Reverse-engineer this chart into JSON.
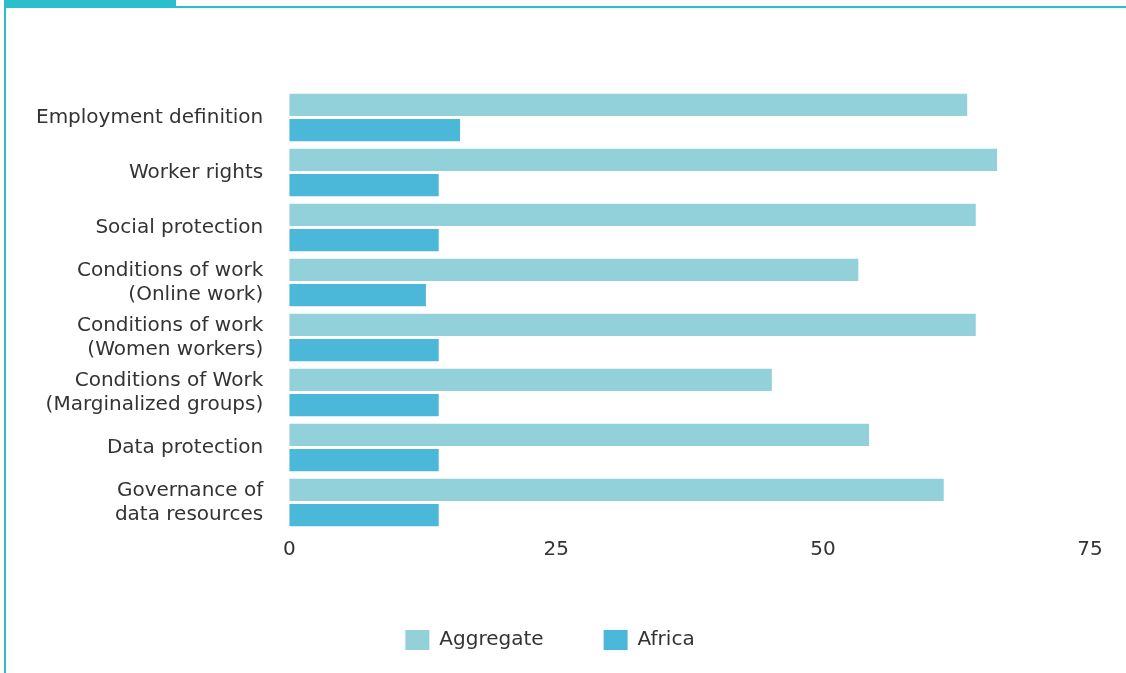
{
  "chart_data": {
    "type": "bar",
    "orientation": "horizontal",
    "categories": [
      "Employment definition",
      "Worker rights",
      "Social protection",
      "Conditions of work\n(Online work)",
      "Conditions of work\n(Women workers)",
      "Conditions of Work\n(Marginalized groups)",
      "Data protection",
      "Governance of\ndata resources"
    ],
    "series": [
      {
        "name": "Aggregate",
        "color": "#92d0da",
        "values": [
          63.5,
          66.3,
          64.3,
          53.3,
          64.3,
          45.2,
          54.3,
          61.3
        ]
      },
      {
        "name": "Africa",
        "color": "#4cb8d9",
        "values": [
          16,
          14,
          14,
          12.8,
          14,
          14,
          14,
          14
        ]
      }
    ],
    "xlim": [
      0,
      75
    ],
    "xticks": [
      0,
      25,
      50,
      75
    ],
    "grid": false,
    "legend": "bottom"
  }
}
